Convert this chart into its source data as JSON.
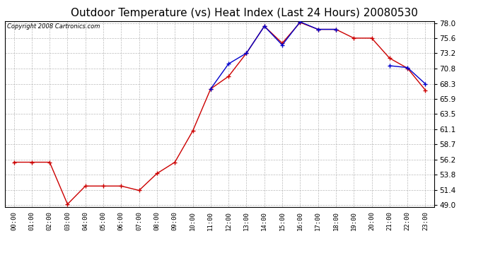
{
  "title": "Outdoor Temperature (vs) Heat Index (Last 24 Hours) 20080530",
  "copyright": "Copyright 2008 Cartronics.com",
  "hours": [
    "00:00",
    "01:00",
    "02:00",
    "03:00",
    "04:00",
    "05:00",
    "06:00",
    "07:00",
    "08:00",
    "09:00",
    "10:00",
    "11:00",
    "12:00",
    "13:00",
    "14:00",
    "15:00",
    "16:00",
    "17:00",
    "18:00",
    "19:00",
    "20:00",
    "21:00",
    "22:00",
    "23:00"
  ],
  "temp": [
    55.8,
    55.8,
    55.8,
    49.1,
    52.0,
    52.0,
    52.0,
    51.3,
    54.0,
    55.8,
    60.8,
    67.5,
    69.5,
    73.2,
    77.5,
    74.8,
    78.1,
    77.0,
    77.0,
    75.6,
    75.6,
    72.4,
    70.8,
    67.3
  ],
  "heat_index": [
    null,
    null,
    null,
    null,
    null,
    null,
    null,
    null,
    null,
    null,
    null,
    67.5,
    71.5,
    73.2,
    77.5,
    74.5,
    78.2,
    77.0,
    77.0,
    null,
    null,
    71.2,
    70.9,
    68.3
  ],
  "temp_color": "#cc0000",
  "heat_color": "#0000cc",
  "bg_color": "#ffffff",
  "plot_bg": "#ffffff",
  "grid_color": "#aaaaaa",
  "ylim_min": 49.0,
  "ylim_max": 78.0,
  "yticks": [
    49.0,
    51.4,
    53.8,
    56.2,
    58.7,
    61.1,
    63.5,
    65.9,
    68.3,
    70.8,
    73.2,
    75.6,
    78.0
  ],
  "title_fontsize": 11,
  "copyright_fontsize": 6,
  "figwidth": 6.9,
  "figheight": 3.75,
  "dpi": 100
}
